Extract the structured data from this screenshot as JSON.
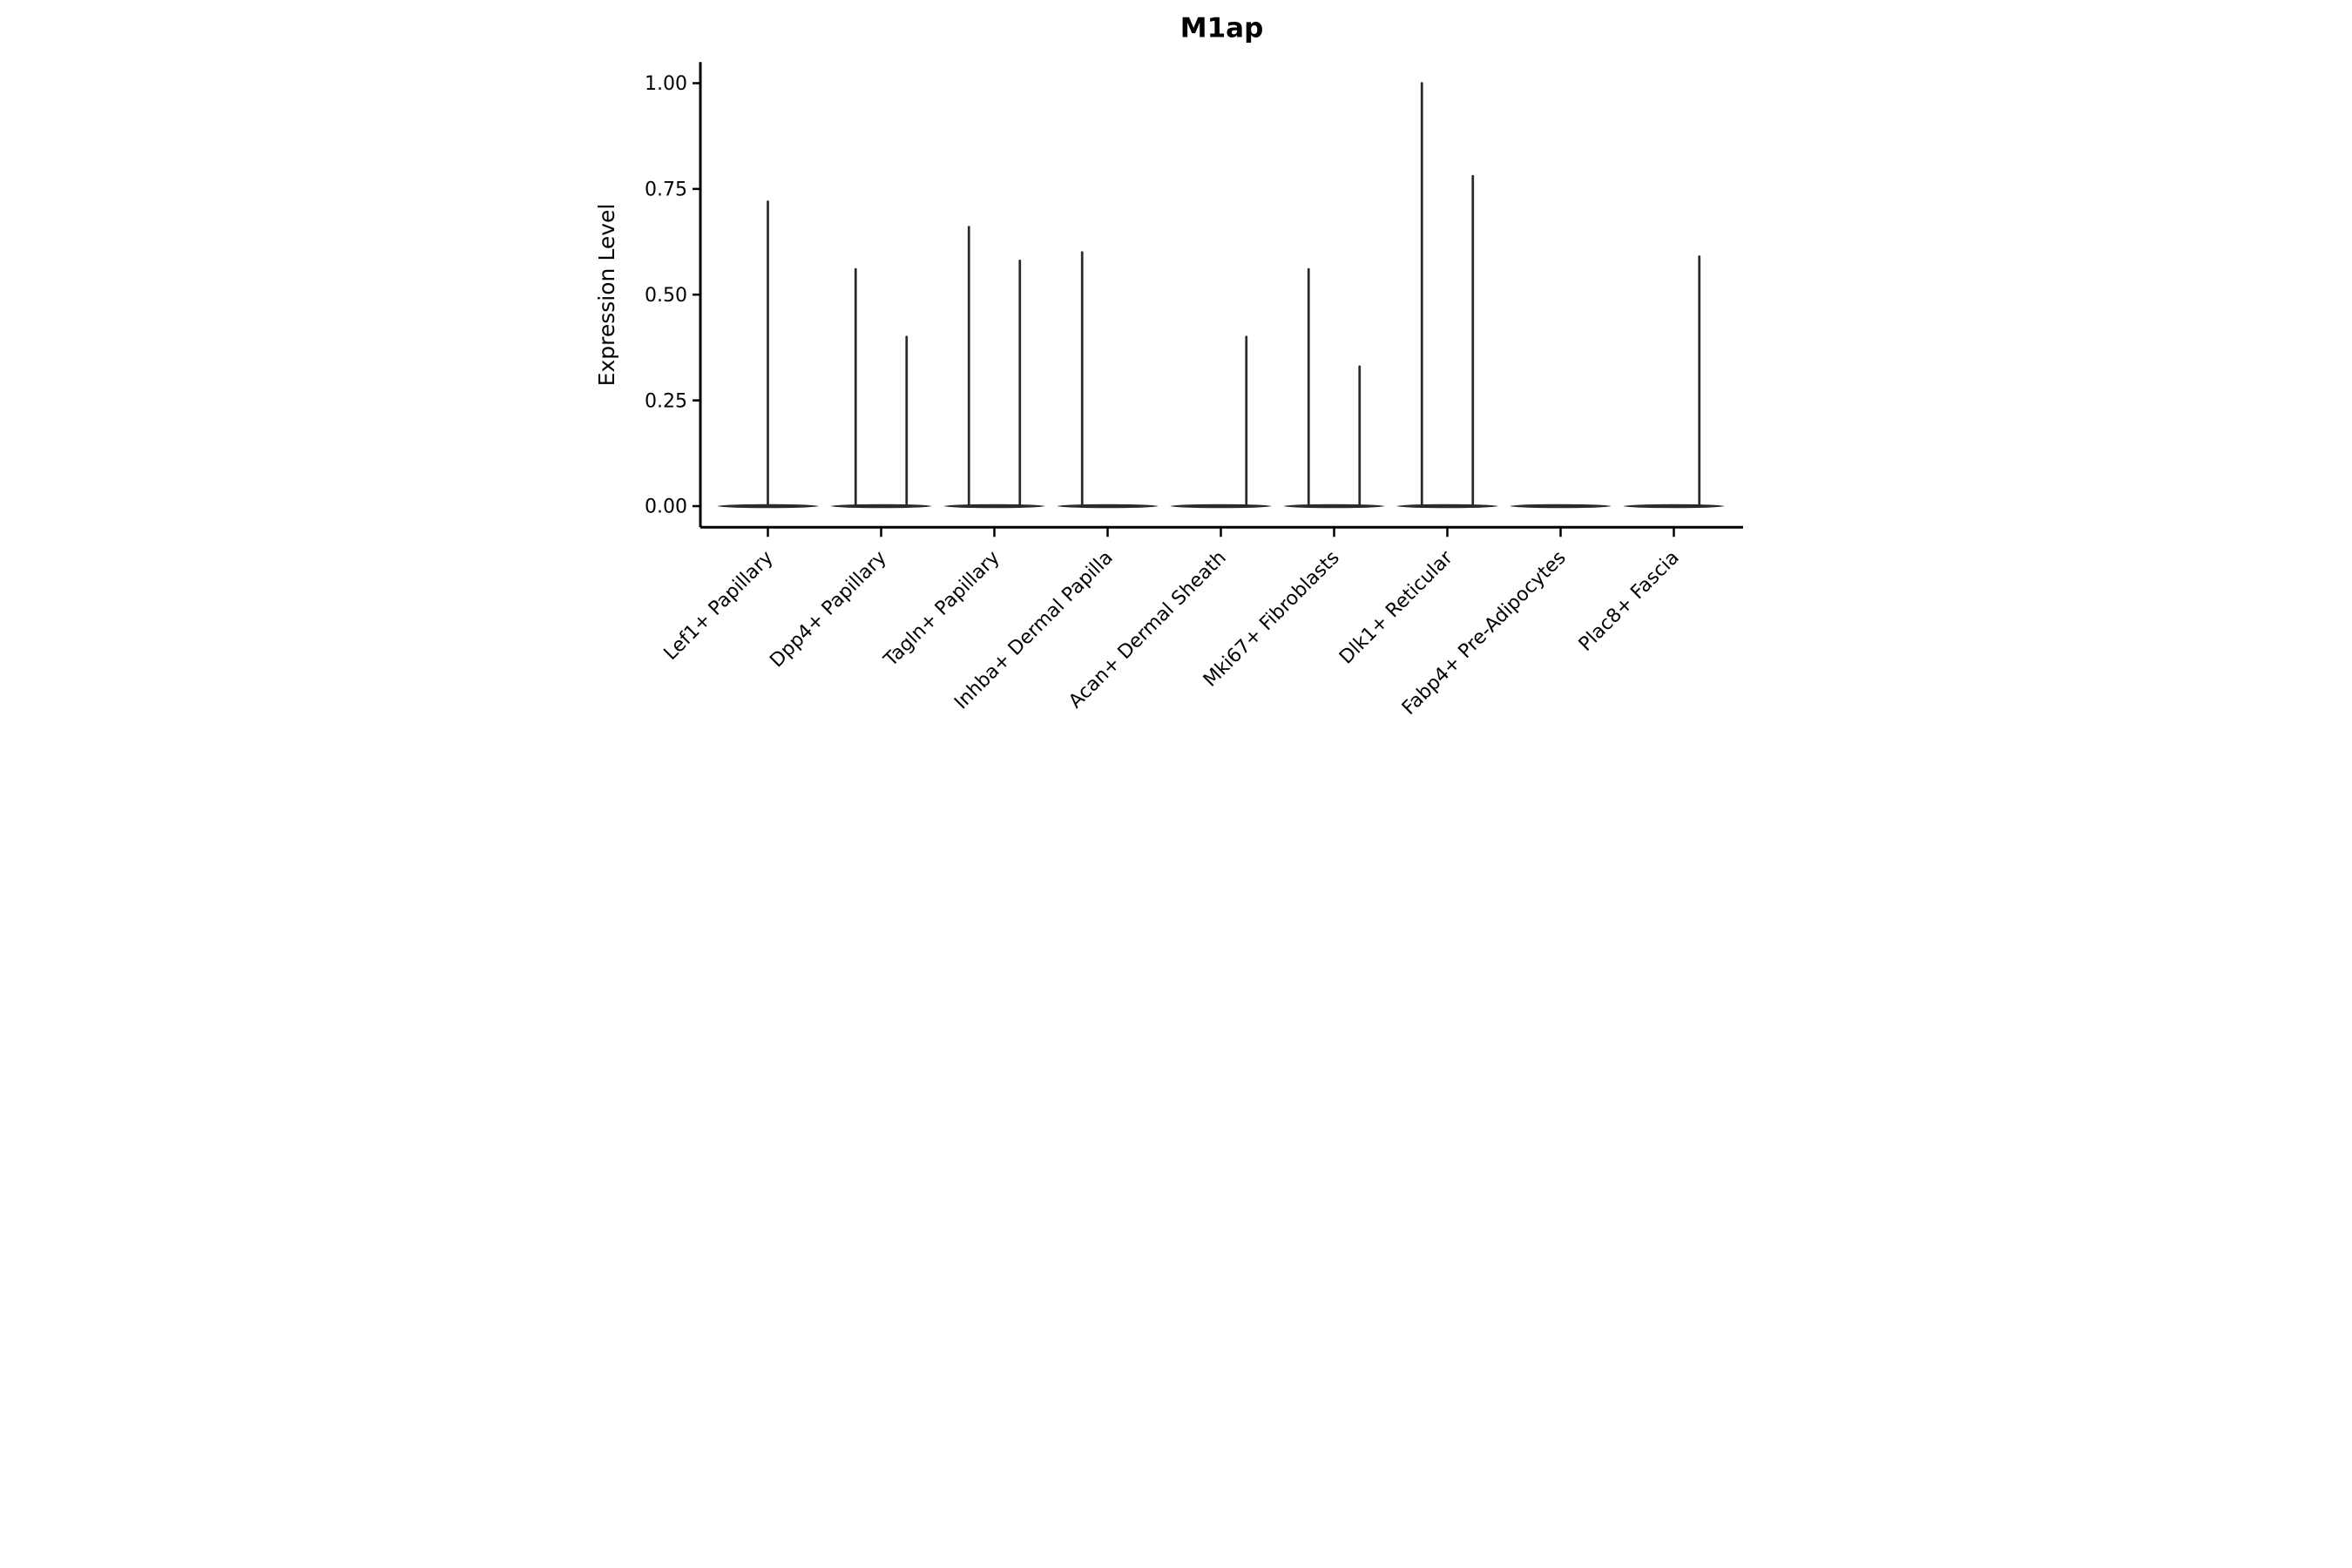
{
  "chart_data": {
    "type": "violin",
    "title": "M1ap",
    "ylabel": "Expression Level",
    "xlabel": "",
    "background_color": "#ffffff",
    "axis_color": "#000000",
    "violin_color": "#2b2b2b",
    "grid": false,
    "legend": null,
    "ylim": [
      -0.05,
      1.05
    ],
    "yticks": [
      {
        "value": 0.0,
        "label": "0.00"
      },
      {
        "value": 0.25,
        "label": "0.25"
      },
      {
        "value": 0.5,
        "label": "0.50"
      },
      {
        "value": 0.75,
        "label": "0.75"
      },
      {
        "value": 1.0,
        "label": "1.00"
      }
    ],
    "categories": [
      {
        "label": "Lef1+ Papillary",
        "spikes": [
          {
            "side": "center",
            "peak": 0.72
          }
        ]
      },
      {
        "label": "Dpp4+ Papillary",
        "spikes": [
          {
            "side": "left",
            "peak": 0.56
          },
          {
            "side": "right",
            "peak": 0.4
          }
        ]
      },
      {
        "label": "Tagln+ Papillary",
        "spikes": [
          {
            "side": "left",
            "peak": 0.66
          },
          {
            "side": "right",
            "peak": 0.58
          }
        ]
      },
      {
        "label": "Inhba+ Dermal Papilla",
        "spikes": [
          {
            "side": "left",
            "peak": 0.6
          }
        ]
      },
      {
        "label": "Acan+ Dermal Sheath",
        "spikes": [
          {
            "side": "right",
            "peak": 0.4
          }
        ]
      },
      {
        "label": "Mki67+ Fibroblasts",
        "spikes": [
          {
            "side": "left",
            "peak": 0.56
          },
          {
            "side": "right",
            "peak": 0.33
          }
        ]
      },
      {
        "label": "Dlk1+ Reticular",
        "spikes": [
          {
            "side": "left",
            "peak": 1.0
          },
          {
            "side": "right",
            "peak": 0.78
          }
        ]
      },
      {
        "label": "Fabp4+ Pre-Adipocytes",
        "spikes": []
      },
      {
        "label": "Plac8+ Fascia",
        "spikes": [
          {
            "side": "right",
            "peak": 0.59
          }
        ]
      }
    ]
  }
}
